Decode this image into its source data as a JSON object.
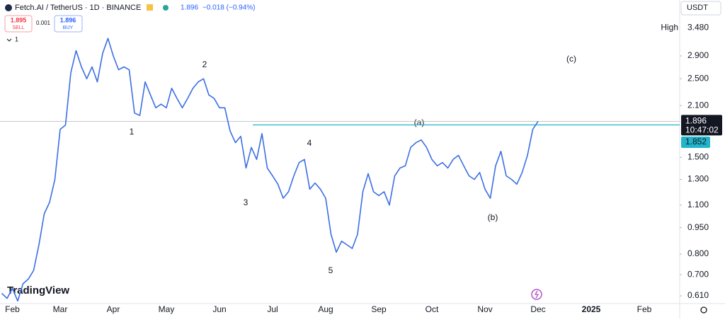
{
  "ui": {
    "symbol": "Fetch.AI / TetherUS · 1D · BINANCE",
    "quote": "1.896",
    "change": "−0.018 (−0.94%)",
    "sell_price": "1.895",
    "sell": "SELL",
    "spread": "0.001",
    "buy_price": "1.896",
    "buy": "BUY",
    "indicators": "1",
    "currency": "USDT",
    "logo": "TradingView"
  },
  "chart_data": {
    "type": "line",
    "log_scale": true,
    "grid": false,
    "color": "#3b6fe3",
    "categories": [
      null,
      null,
      "Feb",
      null,
      null,
      null,
      null,
      null,
      null,
      null,
      null,
      "Mar",
      null,
      null,
      null,
      null,
      null,
      null,
      null,
      null,
      null,
      "Apr",
      null,
      null,
      null,
      null,
      null,
      null,
      null,
      null,
      null,
      "May",
      null,
      null,
      null,
      null,
      null,
      null,
      null,
      null,
      null,
      "Jun",
      null,
      null,
      null,
      null,
      null,
      null,
      null,
      null,
      null,
      "Jul",
      null,
      null,
      null,
      null,
      null,
      null,
      null,
      null,
      null,
      "Aug",
      null,
      null,
      null,
      null,
      null,
      null,
      null,
      null,
      null,
      "Sep",
      null,
      null,
      null,
      null,
      null,
      null,
      null,
      null,
      null,
      "Oct",
      null,
      null,
      null,
      null,
      null,
      null,
      null,
      null,
      null,
      "Nov",
      null,
      null,
      null,
      null,
      null,
      null,
      null,
      null,
      null,
      "Dec",
      null,
      null,
      null,
      null,
      null,
      null,
      null,
      null,
      null,
      "2025",
      null,
      null,
      null,
      null,
      null,
      null,
      null,
      null,
      null,
      "Feb",
      null,
      null,
      null,
      null,
      null,
      null
    ],
    "values": [
      0.62,
      0.6,
      0.64,
      0.59,
      0.66,
      0.68,
      0.72,
      0.85,
      1.04,
      1.12,
      1.3,
      1.8,
      1.85,
      2.6,
      3.0,
      2.7,
      2.5,
      2.7,
      2.45,
      2.95,
      3.25,
      2.9,
      2.65,
      2.7,
      2.65,
      2.0,
      1.97,
      2.45,
      2.25,
      2.07,
      2.12,
      2.07,
      2.35,
      2.2,
      2.07,
      2.2,
      2.35,
      2.45,
      2.5,
      2.25,
      2.2,
      2.07,
      2.07,
      1.78,
      1.65,
      1.72,
      1.4,
      1.6,
      1.48,
      1.75,
      1.4,
      1.33,
      1.26,
      1.15,
      1.2,
      1.33,
      1.45,
      1.48,
      1.22,
      1.27,
      1.22,
      1.15,
      0.91,
      0.81,
      0.87,
      0.85,
      0.83,
      0.91,
      1.2,
      1.35,
      1.2,
      1.17,
      1.2,
      1.1,
      1.33,
      1.4,
      1.42,
      1.6,
      1.65,
      1.68,
      1.6,
      1.48,
      1.42,
      1.45,
      1.4,
      1.48,
      1.52,
      1.42,
      1.33,
      1.3,
      1.36,
      1.22,
      1.15,
      1.42,
      1.56,
      1.33,
      1.3,
      1.26,
      1.36,
      1.52,
      1.8,
      1.896,
      null,
      null,
      null,
      null,
      null,
      null,
      null,
      null,
      null,
      null,
      null,
      null,
      null,
      null,
      null,
      null,
      null,
      null,
      null,
      null,
      null,
      null,
      null,
      null,
      null,
      null
    ],
    "ylim": [
      0.58,
      4.17
    ],
    "yticks": [
      {
        "value": 0.61,
        "label": "0.610"
      },
      {
        "value": 0.7,
        "label": "0.700"
      },
      {
        "value": 0.8,
        "label": "0.800"
      },
      {
        "value": 0.95,
        "label": "0.950"
      },
      {
        "value": 1.1,
        "label": "1.100"
      },
      {
        "value": 1.3,
        "label": "1.300"
      },
      {
        "value": 1.5,
        "label": "1.500"
      },
      {
        "value": 2.1,
        "label": "2.100"
      },
      {
        "value": 2.5,
        "label": "2.500"
      },
      {
        "value": 2.9,
        "label": "2.900"
      }
    ],
    "high": {
      "name": "High",
      "value": 3.48,
      "label": "3.480"
    },
    "last_price": {
      "value": 1.896,
      "label": "1.896",
      "countdown": "10:47:02"
    },
    "level_line": {
      "value": 1.852,
      "label": "1.852",
      "color": "#21b5c9"
    },
    "annotations": [
      "1",
      "2",
      "3",
      "4",
      "5",
      "(a)",
      "(b)",
      "(c)"
    ]
  }
}
